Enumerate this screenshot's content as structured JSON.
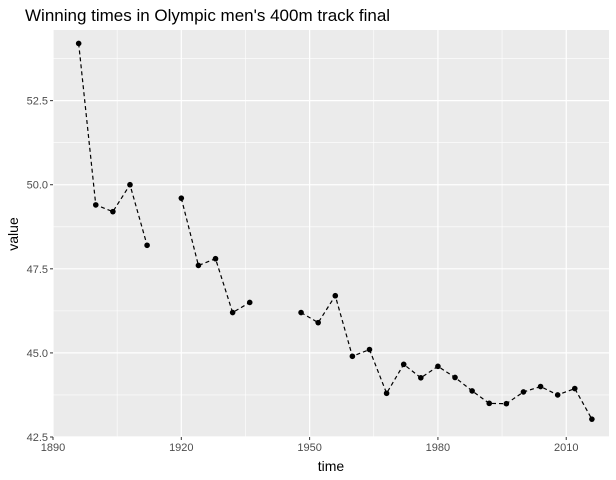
{
  "chart_data": {
    "type": "line",
    "title": "Winning times in Olympic men's 400m track final",
    "xlabel": "time",
    "ylabel": "value",
    "xlim": [
      1890,
      2020
    ],
    "ylim": [
      42.5,
      54.6
    ],
    "x_ticks": [
      1890,
      1920,
      1950,
      1980,
      2010
    ],
    "x_tick_labels": [
      "1890",
      "1920",
      "1950",
      "1980",
      "2010"
    ],
    "y_ticks": [
      42.5,
      45.0,
      47.5,
      50.0,
      52.5
    ],
    "y_tick_labels": [
      "42.5",
      "45.0",
      "47.5",
      "50.0",
      "52.5"
    ],
    "grid": true,
    "line_style": "dashed",
    "colors": {
      "panel": "#ebebeb",
      "grid": "#ffffff",
      "series": "#000000"
    },
    "series": [
      {
        "points": [
          {
            "x": 1896,
            "y": 54.2
          },
          {
            "x": 1900,
            "y": 49.4
          },
          {
            "x": 1904,
            "y": 49.2
          },
          {
            "x": 1908,
            "y": 50.0
          },
          {
            "x": 1912,
            "y": 48.2
          },
          {
            "x": 1916,
            "y": null
          },
          {
            "x": 1920,
            "y": 49.6
          },
          {
            "x": 1924,
            "y": 47.6
          },
          {
            "x": 1928,
            "y": 47.8
          },
          {
            "x": 1932,
            "y": 46.2
          },
          {
            "x": 1936,
            "y": 46.5
          },
          {
            "x": 1940,
            "y": null
          },
          {
            "x": 1944,
            "y": null
          },
          {
            "x": 1948,
            "y": 46.2
          },
          {
            "x": 1952,
            "y": 45.9
          },
          {
            "x": 1956,
            "y": 46.7
          },
          {
            "x": 1960,
            "y": 44.9
          },
          {
            "x": 1964,
            "y": 45.1
          },
          {
            "x": 1968,
            "y": 43.8
          },
          {
            "x": 1972,
            "y": 44.66
          },
          {
            "x": 1976,
            "y": 44.26
          },
          {
            "x": 1980,
            "y": 44.6
          },
          {
            "x": 1984,
            "y": 44.27
          },
          {
            "x": 1988,
            "y": 43.87
          },
          {
            "x": 1992,
            "y": 43.5
          },
          {
            "x": 1996,
            "y": 43.49
          },
          {
            "x": 2000,
            "y": 43.84
          },
          {
            "x": 2004,
            "y": 44.0
          },
          {
            "x": 2008,
            "y": 43.75
          },
          {
            "x": 2012,
            "y": 43.94
          },
          {
            "x": 2016,
            "y": 43.03
          }
        ]
      }
    ]
  }
}
